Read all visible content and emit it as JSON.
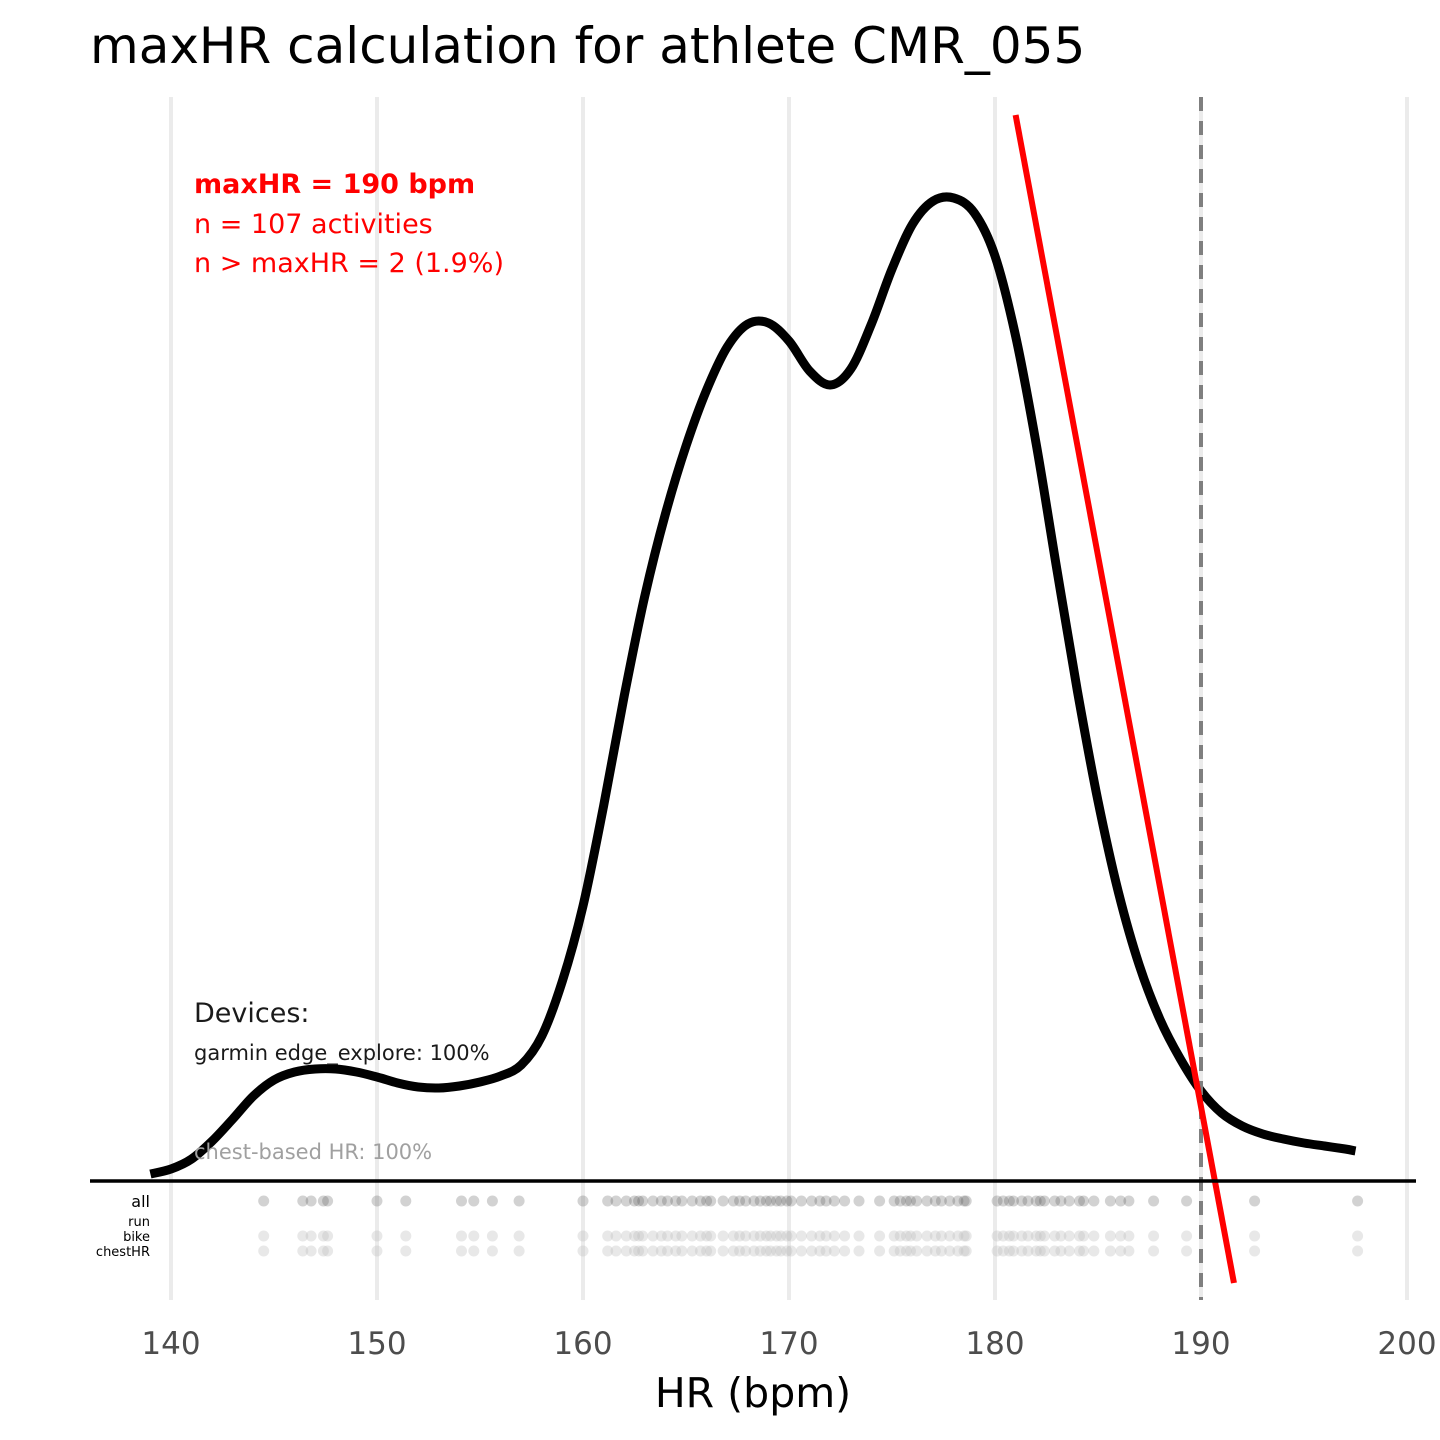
{
  "chart_data": {
    "type": "line",
    "title": "maxHR calculation for athlete CMR_055",
    "xlabel": "HR (bpm)",
    "ylabel": "",
    "xlim": [
      136,
      201.5
    ],
    "x_ticks": [
      "140",
      "150",
      "160",
      "170",
      "180",
      "190",
      "200"
    ],
    "grid": "vertical major lines",
    "density_curve": {
      "x": [
        139,
        140,
        141,
        142,
        143,
        144,
        145,
        146,
        147,
        148,
        149,
        150,
        151,
        152,
        153,
        154,
        155,
        156,
        157,
        158,
        159,
        160,
        161,
        162,
        163,
        164,
        165,
        166,
        167,
        168,
        169,
        170,
        171,
        172,
        173,
        174,
        175,
        176,
        177,
        178,
        179,
        180,
        181,
        182,
        183,
        184,
        185,
        186,
        187,
        188,
        189,
        190,
        191,
        192,
        193,
        194,
        195,
        196,
        197,
        197.5
      ],
      "y": [
        0.007,
        0.012,
        0.022,
        0.04,
        0.062,
        0.085,
        0.101,
        0.109,
        0.112,
        0.112,
        0.109,
        0.104,
        0.098,
        0.094,
        0.093,
        0.095,
        0.099,
        0.105,
        0.116,
        0.145,
        0.2,
        0.275,
        0.375,
        0.485,
        0.585,
        0.667,
        0.735,
        0.791,
        0.834,
        0.857,
        0.858,
        0.84,
        0.81,
        0.796,
        0.812,
        0.857,
        0.912,
        0.957,
        0.98,
        0.983,
        0.968,
        0.925,
        0.845,
        0.737,
        0.612,
        0.49,
        0.38,
        0.288,
        0.216,
        0.162,
        0.122,
        0.09,
        0.068,
        0.055,
        0.047,
        0.042,
        0.038,
        0.035,
        0.032,
        0.03
      ]
    },
    "fit_line": {
      "x": [
        181,
        191.6
      ],
      "y": [
        1.066,
        -0.102
      ],
      "color": "#ff0000"
    },
    "maxhr_reference": {
      "x": 190,
      "style": "dashed",
      "color": "#7f7f7f"
    },
    "rug_rows": [
      "all",
      "run",
      "bike",
      "chestHR"
    ],
    "rug_points": {
      "all": [
        144.5,
        146.4,
        146.8,
        147.4,
        147.6,
        150,
        151.4,
        154.1,
        154.7,
        155.6,
        156.9,
        160,
        161.2,
        161.6,
        162.1,
        162.5,
        162.7,
        162.9,
        163.4,
        163.8,
        164.1,
        164.5,
        164.8,
        165.3,
        165.7,
        166,
        166.2,
        166.8,
        167.3,
        167.6,
        167.9,
        168.3,
        168.6,
        168.9,
        169.1,
        169.4,
        169.6,
        169.9,
        170.1,
        170.6,
        171.1,
        171.5,
        171.8,
        172.2,
        172.7,
        173.4,
        174.4,
        175.1,
        175.4,
        175.7,
        175.9,
        176.2,
        176.7,
        177.1,
        177.4,
        177.8,
        178.2,
        178.5,
        178.6,
        180.1,
        180.4,
        180.7,
        180.9,
        181.3,
        181.6,
        182,
        182.2,
        182.4,
        182.9,
        183.2,
        183.6,
        184.1,
        184.3,
        184.8,
        185.6,
        186.1,
        186.5,
        187.7,
        189.3,
        192.6,
        197.6
      ],
      "bike": [
        144.5,
        146.4,
        146.8,
        147.4,
        147.6,
        150,
        151.4,
        154.1,
        154.7,
        155.6,
        156.9,
        160,
        161.2,
        161.6,
        162.1,
        162.5,
        162.7,
        162.9,
        163.4,
        163.8,
        164.1,
        164.5,
        164.8,
        165.3,
        165.7,
        166,
        166.2,
        166.8,
        167.3,
        167.6,
        167.9,
        168.3,
        168.6,
        168.9,
        169.1,
        169.4,
        169.6,
        169.9,
        170.1,
        170.6,
        171.1,
        171.5,
        171.8,
        172.2,
        172.7,
        173.4,
        174.4,
        175.1,
        175.4,
        175.7,
        175.9,
        176.2,
        176.7,
        177.1,
        177.4,
        177.8,
        178.2,
        178.5,
        178.6,
        180.1,
        180.4,
        180.7,
        180.9,
        181.3,
        181.6,
        182,
        182.2,
        182.4,
        182.9,
        183.2,
        183.6,
        184.1,
        184.3,
        184.8,
        185.6,
        186.1,
        186.5,
        187.7,
        189.3,
        192.6,
        197.6
      ],
      "chestHR": [
        144.5,
        146.4,
        146.8,
        147.4,
        147.6,
        150,
        151.4,
        154.1,
        154.7,
        155.6,
        156.9,
        160,
        161.2,
        161.6,
        162.1,
        162.5,
        162.7,
        162.9,
        163.4,
        163.8,
        164.1,
        164.5,
        164.8,
        165.3,
        165.7,
        166,
        166.2,
        166.8,
        167.3,
        167.6,
        167.9,
        168.3,
        168.6,
        168.9,
        169.1,
        169.4,
        169.6,
        169.9,
        170.1,
        170.6,
        171.1,
        171.5,
        171.8,
        172.2,
        172.7,
        173.4,
        174.4,
        175.1,
        175.4,
        175.7,
        175.9,
        176.2,
        176.7,
        177.1,
        177.4,
        177.8,
        178.2,
        178.5,
        178.6,
        180.1,
        180.4,
        180.7,
        180.9,
        181.3,
        181.6,
        182,
        182.2,
        182.4,
        182.9,
        183.2,
        183.6,
        184.1,
        184.3,
        184.8,
        185.6,
        186.1,
        186.5,
        187.7,
        189.3,
        192.6,
        197.6
      ],
      "run": []
    },
    "annotations": {
      "maxhr": "maxHR = 190 bpm",
      "n_activities": "n = 107 activities",
      "n_above": "n > maxHR = 2 (1.9%)",
      "devices_header": "Devices:",
      "device_line": "garmin edge_explore: 100%",
      "chest_line": "chest-based HR: 100%"
    },
    "colors": {
      "curve": "#000000",
      "fit": "#ff0000",
      "annotation": "#ff0000",
      "grid": "#ebebeb",
      "rug_all": "#4d4d4d",
      "rug_other": "#bdbdbd"
    }
  }
}
